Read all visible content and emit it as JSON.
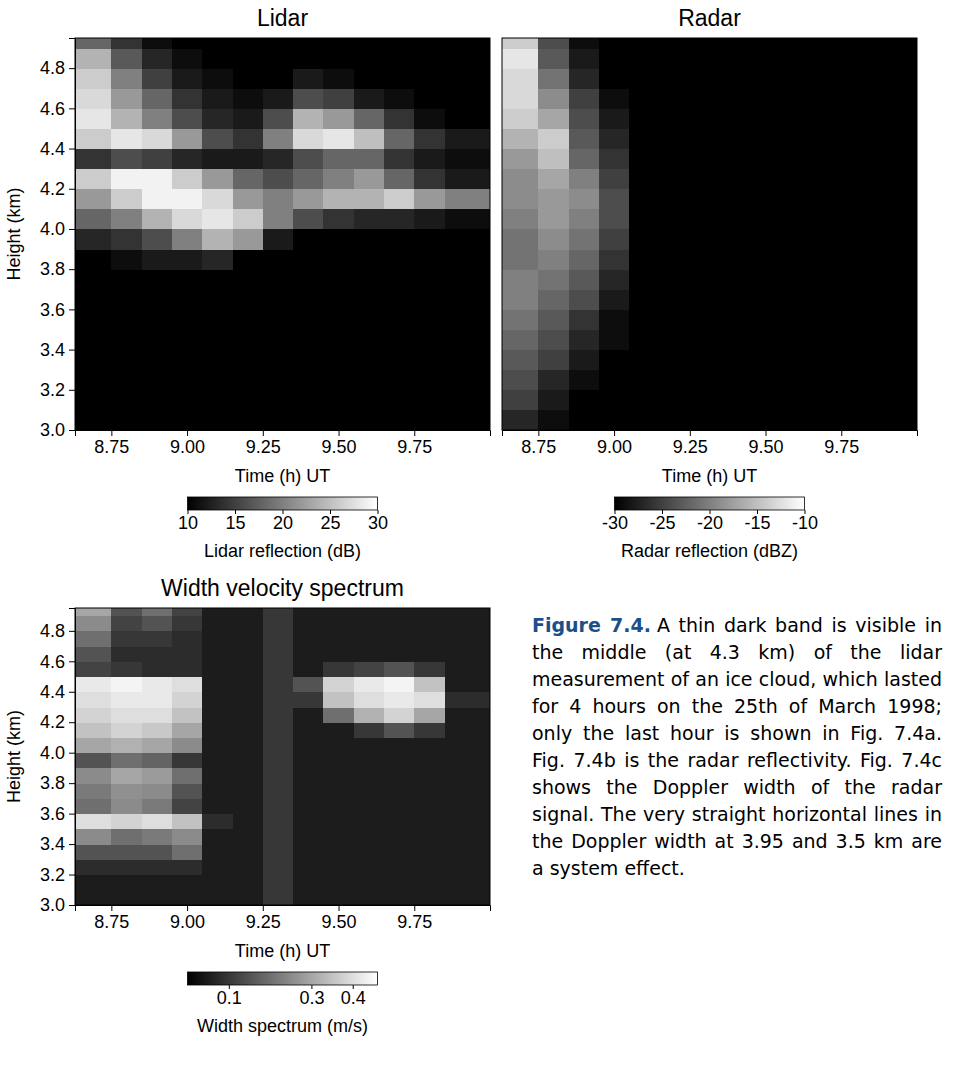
{
  "chart_data": [
    {
      "type": "heatmap",
      "title": "Lidar",
      "x_label": "Time (h) UT",
      "y_label": "Height (km)",
      "xlim": [
        8.63,
        10.0
      ],
      "xticks": [
        8.75,
        {
          "value": 9,
          "label": "9.00"
        },
        9.25,
        {
          "value": 9.5,
          "label": "9.50"
        },
        9.75
      ],
      "ylim": [
        3.0,
        4.95
      ],
      "yticks": [
        {
          "value": 3,
          "label": "3.0"
        },
        3.2,
        3.4,
        3.6,
        3.8,
        {
          "value": 4,
          "label": "4.0"
        },
        4.2,
        4.4,
        4.6,
        4.8
      ],
      "x_edges": [
        8.63,
        8.75,
        8.85,
        8.95,
        9.05,
        9.15,
        9.25,
        9.35,
        9.45,
        9.55,
        9.65,
        9.75,
        9.85,
        10.0
      ],
      "y_edges": [
        3.0,
        3.1,
        3.2,
        3.3,
        3.4,
        3.5,
        3.6,
        3.7,
        3.8,
        3.9,
        4.0,
        4.1,
        4.2,
        4.3,
        4.4,
        4.5,
        4.6,
        4.7,
        4.8,
        4.9,
        4.95
      ],
      "cells": [
        [
          10,
          10,
          10,
          10,
          10,
          10,
          10,
          10,
          10,
          10,
          10,
          10,
          10
        ],
        [
          10,
          10,
          10,
          10,
          10,
          10,
          10,
          10,
          10,
          10,
          10,
          10,
          10
        ],
        [
          10,
          10,
          10,
          10,
          10,
          10,
          10,
          10,
          10,
          10,
          10,
          10,
          10
        ],
        [
          10,
          10,
          10,
          10,
          10,
          10,
          10,
          10,
          10,
          10,
          10,
          10,
          10
        ],
        [
          10,
          10,
          10,
          10,
          10,
          10,
          10,
          10,
          10,
          10,
          10,
          10,
          10
        ],
        [
          10,
          10,
          10,
          10,
          10,
          10,
          10,
          10,
          10,
          10,
          10,
          10,
          10
        ],
        [
          10,
          10,
          10,
          10,
          10,
          10,
          10,
          10,
          10,
          10,
          10,
          10,
          10
        ],
        [
          10,
          10,
          10,
          10,
          10,
          10,
          10,
          10,
          10,
          10,
          10,
          10,
          10
        ],
        [
          10,
          11,
          12,
          12,
          13,
          10,
          10,
          10,
          10,
          10,
          10,
          10,
          10
        ],
        [
          13,
          14,
          16,
          20,
          24,
          22,
          12,
          10,
          10,
          10,
          10,
          10,
          10
        ],
        [
          18,
          20,
          24,
          27,
          28,
          26,
          20,
          16,
          14,
          13,
          13,
          12,
          11
        ],
        [
          22,
          26,
          29,
          29,
          27,
          22,
          20,
          22,
          24,
          24,
          26,
          22,
          20
        ],
        [
          26,
          29,
          29,
          26,
          22,
          18,
          16,
          18,
          20,
          22,
          18,
          14,
          12
        ],
        [
          14,
          16,
          15,
          13,
          12,
          12,
          13,
          16,
          18,
          18,
          14,
          12,
          11
        ],
        [
          26,
          28,
          27,
          22,
          16,
          14,
          20,
          27,
          28,
          25,
          18,
          14,
          12
        ],
        [
          28,
          24,
          20,
          16,
          13,
          12,
          16,
          24,
          22,
          18,
          14,
          11,
          10
        ],
        [
          27,
          22,
          18,
          14,
          12,
          11,
          12,
          16,
          15,
          12,
          11,
          10,
          10
        ],
        [
          26,
          20,
          15,
          12,
          11,
          10,
          10,
          12,
          11,
          10,
          10,
          10,
          10
        ],
        [
          24,
          17,
          13,
          11,
          10,
          10,
          10,
          10,
          10,
          10,
          10,
          10,
          10
        ],
        [
          18,
          14,
          11,
          10,
          10,
          10,
          10,
          10,
          10,
          10,
          10,
          10,
          10
        ]
      ],
      "colorbar": {
        "label": "Lidar reflection (dB)",
        "range": [
          10,
          30
        ],
        "ticks": [
          10,
          15,
          20,
          25,
          30
        ]
      }
    },
    {
      "type": "heatmap",
      "title": "Radar",
      "x_label": "Time (h) UT",
      "tick_labels": "x",
      "xlim": [
        8.63,
        10.0
      ],
      "xticks": [
        8.75,
        {
          "value": 9,
          "label": "9.00"
        },
        9.25,
        {
          "value": 9.5,
          "label": "9.50"
        },
        9.75
      ],
      "ylim": [
        3.0,
        4.95
      ],
      "x_edges": [
        8.63,
        8.75,
        8.85,
        8.95,
        9.05,
        9.15,
        9.25,
        9.35,
        9.45,
        9.55,
        9.65,
        9.75,
        9.85,
        10.0
      ],
      "y_edges": [
        3.0,
        3.1,
        3.2,
        3.3,
        3.4,
        3.5,
        3.6,
        3.7,
        3.8,
        3.9,
        4.0,
        4.1,
        4.2,
        4.3,
        4.4,
        4.5,
        4.6,
        4.7,
        4.8,
        4.9,
        4.95
      ],
      "cells": [
        [
          -27,
          -29,
          -30,
          -30,
          -30,
          -30,
          -30,
          -30,
          -30,
          -30,
          -30,
          -30,
          -30
        ],
        [
          -25,
          -28,
          -30,
          -30,
          -30,
          -30,
          -30,
          -30,
          -30,
          -30,
          -30,
          -30,
          -30
        ],
        [
          -24,
          -27,
          -29,
          -30,
          -30,
          -30,
          -30,
          -30,
          -30,
          -30,
          -30,
          -30,
          -30
        ],
        [
          -23,
          -25,
          -28,
          -30,
          -30,
          -30,
          -30,
          -30,
          -30,
          -30,
          -30,
          -30,
          -30
        ],
        [
          -22,
          -24,
          -27,
          -29,
          -30,
          -30,
          -30,
          -30,
          -30,
          -30,
          -30,
          -30,
          -30
        ],
        [
          -21,
          -23,
          -26,
          -29,
          -30,
          -30,
          -30,
          -30,
          -30,
          -30,
          -30,
          -30,
          -30
        ],
        [
          -20,
          -22,
          -24,
          -28,
          -30,
          -30,
          -30,
          -30,
          -30,
          -30,
          -30,
          -30,
          -30
        ],
        [
          -20,
          -21,
          -23,
          -27,
          -30,
          -30,
          -30,
          -30,
          -30,
          -30,
          -30,
          -30,
          -30
        ],
        [
          -21,
          -20,
          -22,
          -26,
          -30,
          -30,
          -30,
          -30,
          -30,
          -30,
          -30,
          -30,
          -30
        ],
        [
          -21,
          -19,
          -21,
          -25,
          -30,
          -30,
          -30,
          -30,
          -30,
          -30,
          -30,
          -30,
          -30
        ],
        [
          -20,
          -18,
          -20,
          -24,
          -30,
          -30,
          -30,
          -30,
          -30,
          -30,
          -30,
          -30,
          -30
        ],
        [
          -19,
          -18,
          -19,
          -24,
          -30,
          -30,
          -30,
          -30,
          -30,
          -30,
          -30,
          -30,
          -30
        ],
        [
          -19,
          -17,
          -20,
          -25,
          -30,
          -30,
          -30,
          -30,
          -30,
          -30,
          -30,
          -30,
          -30
        ],
        [
          -18,
          -15,
          -22,
          -26,
          -30,
          -30,
          -30,
          -30,
          -30,
          -30,
          -30,
          -30,
          -30
        ],
        [
          -16,
          -14,
          -23,
          -27,
          -30,
          -30,
          -30,
          -30,
          -30,
          -30,
          -30,
          -30,
          -30
        ],
        [
          -14,
          -17,
          -24,
          -28,
          -30,
          -30,
          -30,
          -30,
          -30,
          -30,
          -30,
          -30,
          -30
        ],
        [
          -13,
          -19,
          -25,
          -29,
          -30,
          -30,
          -30,
          -30,
          -30,
          -30,
          -30,
          -30,
          -30
        ],
        [
          -13,
          -21,
          -27,
          -30,
          -30,
          -30,
          -30,
          -30,
          -30,
          -30,
          -30,
          -30,
          -30
        ],
        [
          -12,
          -23,
          -28,
          -30,
          -30,
          -30,
          -30,
          -30,
          -30,
          -30,
          -30,
          -30,
          -30
        ],
        [
          -14,
          -24,
          -29,
          -30,
          -30,
          -30,
          -30,
          -30,
          -30,
          -30,
          -30,
          -30,
          -30
        ]
      ],
      "colorbar": {
        "label": "Radar reflection (dBZ)",
        "range": [
          -30,
          -10
        ],
        "ticks": [
          -30,
          -25,
          -20,
          -15,
          -10
        ]
      }
    },
    {
      "type": "heatmap",
      "title": "Width velocity spectrum",
      "x_label": "Time (h) UT",
      "y_label": "Height (km)",
      "xlim": [
        8.63,
        10.0
      ],
      "xticks": [
        8.75,
        {
          "value": 9,
          "label": "9.00"
        },
        9.25,
        {
          "value": 9.5,
          "label": "9.50"
        },
        9.75
      ],
      "ylim": [
        3.0,
        4.95
      ],
      "yticks": [
        {
          "value": 3,
          "label": "3.0"
        },
        3.2,
        3.4,
        3.6,
        3.8,
        {
          "value": 4,
          "label": "4.0"
        },
        4.2,
        4.4,
        4.6,
        4.8
      ],
      "x_edges": [
        8.63,
        8.75,
        8.85,
        8.95,
        9.05,
        9.15,
        9.25,
        9.35,
        9.45,
        9.55,
        9.65,
        9.75,
        9.85,
        10.0
      ],
      "y_edges": [
        3.0,
        3.1,
        3.2,
        3.3,
        3.4,
        3.5,
        3.6,
        3.7,
        3.8,
        3.9,
        4.0,
        4.1,
        4.2,
        4.3,
        4.4,
        4.5,
        4.6,
        4.7,
        4.8,
        4.9,
        4.95
      ],
      "cells": [
        [
          0.05,
          0.05,
          0.05,
          0.05,
          0.05,
          0.05,
          0.1,
          0.05,
          0.05,
          0.05,
          0.05,
          0.05,
          0.05
        ],
        [
          0.05,
          0.05,
          0.05,
          0.05,
          0.05,
          0.05,
          0.1,
          0.05,
          0.05,
          0.05,
          0.05,
          0.05,
          0.05
        ],
        [
          0.08,
          0.08,
          0.08,
          0.08,
          0.05,
          0.05,
          0.1,
          0.05,
          0.05,
          0.05,
          0.05,
          0.05,
          0.05
        ],
        [
          0.15,
          0.15,
          0.15,
          0.2,
          0.05,
          0.05,
          0.1,
          0.05,
          0.05,
          0.05,
          0.05,
          0.05,
          0.05
        ],
        [
          0.25,
          0.2,
          0.22,
          0.25,
          0.05,
          0.05,
          0.1,
          0.05,
          0.05,
          0.05,
          0.05,
          0.05,
          0.05
        ],
        [
          0.4,
          0.38,
          0.4,
          0.35,
          0.08,
          0.05,
          0.1,
          0.05,
          0.05,
          0.05,
          0.05,
          0.05,
          0.05
        ],
        [
          0.2,
          0.25,
          0.22,
          0.12,
          0.05,
          0.05,
          0.1,
          0.05,
          0.05,
          0.05,
          0.05,
          0.05,
          0.05
        ],
        [
          0.22,
          0.26,
          0.25,
          0.15,
          0.05,
          0.05,
          0.1,
          0.05,
          0.05,
          0.05,
          0.05,
          0.05,
          0.05
        ],
        [
          0.25,
          0.3,
          0.28,
          0.2,
          0.05,
          0.05,
          0.1,
          0.05,
          0.05,
          0.05,
          0.05,
          0.05,
          0.05
        ],
        [
          0.15,
          0.2,
          0.18,
          0.1,
          0.05,
          0.05,
          0.1,
          0.05,
          0.05,
          0.05,
          0.05,
          0.05,
          0.05
        ],
        [
          0.3,
          0.32,
          0.3,
          0.25,
          0.05,
          0.05,
          0.1,
          0.05,
          0.05,
          0.05,
          0.05,
          0.05,
          0.05
        ],
        [
          0.35,
          0.38,
          0.36,
          0.3,
          0.05,
          0.05,
          0.1,
          0.05,
          0.05,
          0.1,
          0.15,
          0.1,
          0.05
        ],
        [
          0.38,
          0.4,
          0.4,
          0.35,
          0.05,
          0.05,
          0.1,
          0.05,
          0.2,
          0.32,
          0.38,
          0.3,
          0.05
        ],
        [
          0.4,
          0.42,
          0.42,
          0.38,
          0.05,
          0.05,
          0.1,
          0.1,
          0.35,
          0.4,
          0.42,
          0.4,
          0.08
        ],
        [
          0.42,
          0.44,
          0.42,
          0.4,
          0.05,
          0.05,
          0.1,
          0.15,
          0.38,
          0.42,
          0.44,
          0.35,
          0.05
        ],
        [
          0.12,
          0.1,
          0.08,
          0.08,
          0.05,
          0.05,
          0.1,
          0.05,
          0.1,
          0.12,
          0.15,
          0.1,
          0.05
        ],
        [
          0.15,
          0.08,
          0.08,
          0.08,
          0.05,
          0.05,
          0.1,
          0.05,
          0.05,
          0.05,
          0.05,
          0.05,
          0.05
        ],
        [
          0.2,
          0.1,
          0.1,
          0.08,
          0.05,
          0.05,
          0.1,
          0.05,
          0.05,
          0.05,
          0.05,
          0.05,
          0.05
        ],
        [
          0.25,
          0.12,
          0.15,
          0.1,
          0.05,
          0.05,
          0.1,
          0.05,
          0.05,
          0.05,
          0.05,
          0.05,
          0.05
        ],
        [
          0.3,
          0.15,
          0.2,
          0.12,
          0.05,
          0.05,
          0.1,
          0.05,
          0.05,
          0.05,
          0.05,
          0.05,
          0.05
        ]
      ],
      "colorbar": {
        "label": "Width spectrum (m/s)",
        "range": [
          0,
          0.46
        ],
        "ticks": [
          0.1,
          0.3,
          0.4
        ]
      }
    }
  ],
  "caption": {
    "label": "Figure 7.4.",
    "text": "A thin dark band is visible in the middle (at 4.3 km) of the lidar measurement of an ice cloud, which lasted for 4 hours on the 25th of March 1998; only the last hour is shown in Fig. 7.4a. Fig. 7.4b is the radar reflectivity. Fig. 7.4c shows the Doppler width of the radar signal. The very straight horizontal lines in the Doppler width at 3.95 and 3.5 km are a system effect."
  }
}
